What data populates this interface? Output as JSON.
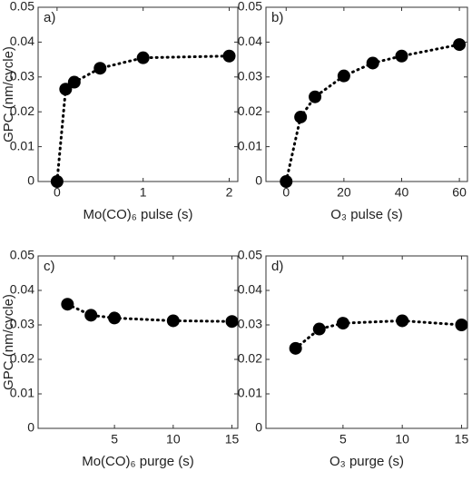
{
  "chart_data": [
    {
      "type": "line",
      "label": "a)",
      "ylabel": "GPC (nm/cycle)",
      "xlabel": "Mo(CO)₆ pulse (s)",
      "x": [
        0,
        0.1,
        0.2,
        0.5,
        1,
        2
      ],
      "values": [
        0,
        0.0265,
        0.0285,
        0.0325,
        0.0355,
        0.036
      ],
      "xlim": [
        -0.22,
        2.1
      ],
      "ylim": [
        0,
        0.05
      ],
      "xticks": [
        0,
        1,
        2
      ],
      "yticks": [
        0,
        0.01,
        0.02,
        0.03,
        0.04,
        0.05
      ],
      "color": "#000000"
    },
    {
      "type": "line",
      "label": "b)",
      "xlabel": "O₃ pulse (s)",
      "x": [
        0,
        5,
        10,
        20,
        30,
        40,
        60
      ],
      "values": [
        0,
        0.0185,
        0.0243,
        0.0303,
        0.034,
        0.036,
        0.0393
      ],
      "xlim": [
        -7,
        62.8
      ],
      "ylim": [
        0,
        0.05
      ],
      "xticks": [
        0,
        20,
        40,
        60
      ],
      "yticks": [
        0,
        0.01,
        0.02,
        0.03,
        0.04,
        0.05
      ],
      "color": "#000000"
    },
    {
      "type": "line",
      "label": "c)",
      "ylabel": "GPC (nm/cycle)",
      "xlabel": "Mo(CO)₆ purge (s)",
      "x": [
        1,
        3,
        5,
        10,
        15
      ],
      "values": [
        0.036,
        0.0328,
        0.032,
        0.0312,
        0.031
      ],
      "xlim": [
        -1.5,
        15.5
      ],
      "ylim": [
        0,
        0.05
      ],
      "xticks": [
        5,
        10,
        15
      ],
      "yticks": [
        0,
        0.01,
        0.02,
        0.03,
        0.04,
        0.05
      ],
      "color": "#000000"
    },
    {
      "type": "line",
      "label": "d)",
      "xlabel": "O₃ purge (s)",
      "x": [
        1,
        3,
        5,
        10,
        15
      ],
      "values": [
        0.0232,
        0.0288,
        0.0305,
        0.0312,
        0.03
      ],
      "xlim": [
        -1.5,
        15.5
      ],
      "ylim": [
        0,
        0.05
      ],
      "xticks": [
        5,
        10,
        15
      ],
      "yticks": [
        0,
        0.01,
        0.02,
        0.03,
        0.04,
        0.05
      ],
      "color": "#000000"
    }
  ]
}
